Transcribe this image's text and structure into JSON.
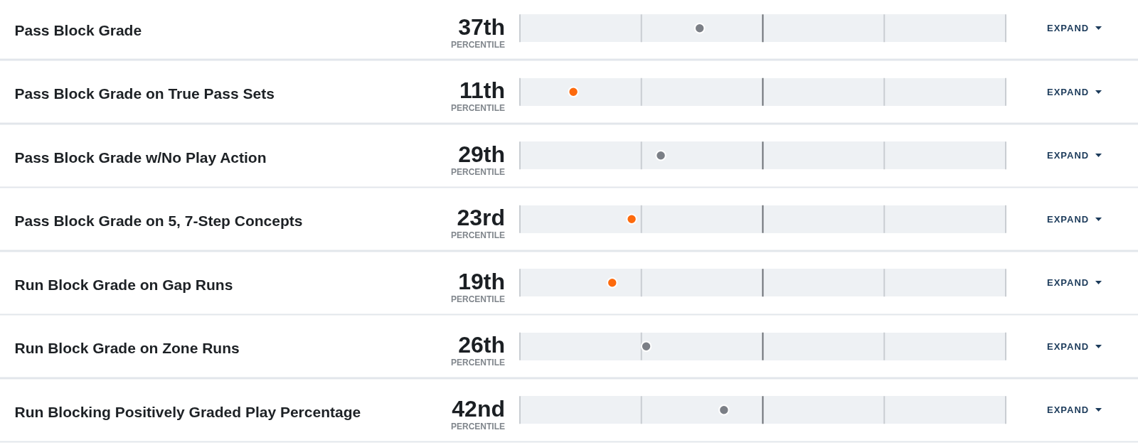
{
  "chart_data": {
    "type": "scatter",
    "orientation": "horizontal",
    "categories": [
      "Pass Block Grade",
      "Pass Block Grade on True Pass Sets",
      "Pass Block Grade w/No Play Action",
      "Pass Block Grade on 5, 7-Step Concepts",
      "Run Block Grade on Gap Runs",
      "Run Block Grade on Zone Runs",
      "Run Blocking Positively Graded Play Percentage"
    ],
    "values": [
      37,
      11,
      29,
      23,
      19,
      26,
      42
    ],
    "colors": [
      "#7b7f86",
      "#fd6a0d",
      "#7b7f86",
      "#fd6a0d",
      "#fd6a0d",
      "#7b7f86",
      "#7b7f86"
    ],
    "value_labels": [
      "37th",
      "11th",
      "29th",
      "23rd",
      "19th",
      "26th",
      "42nd"
    ],
    "tick_labels": "y",
    "marker": "circle",
    "bands": [
      {
        "axis": "x",
        "from": 0,
        "to": 100,
        "color": "#eef1f4"
      }
    ],
    "ref_lines": [
      {
        "axis": "x",
        "value": 0,
        "color": "#c9cdd2"
      },
      {
        "axis": "x",
        "value": 25,
        "color": "#c9cdd2"
      },
      {
        "axis": "x",
        "value": 50,
        "color": "#6b6f74"
      },
      {
        "axis": "x",
        "value": 75,
        "color": "#c9cdd2"
      },
      {
        "axis": "x",
        "value": 100,
        "color": "#c9cdd2"
      }
    ],
    "annotations": [
      "PERCENTILE",
      "EXPAND"
    ]
  }
}
